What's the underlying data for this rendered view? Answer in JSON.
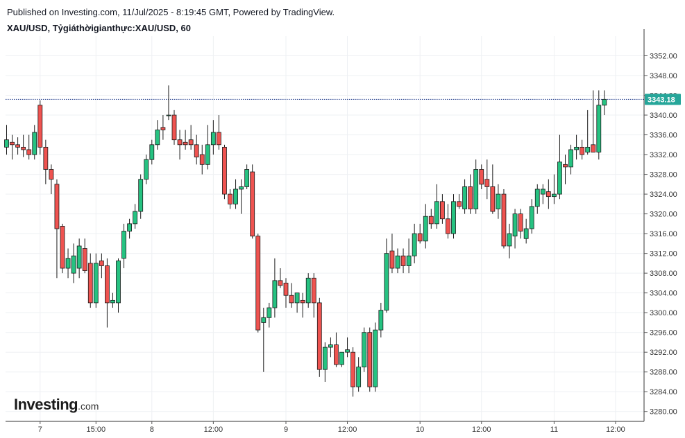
{
  "header": {
    "published": "Published on Investing.com, 11/Jul/2025 - 8:19:45 GMT, Powered by TradingView.",
    "symbol": "XAU/USD, Tỷgiáthờigianthực:XAU/USD, 60"
  },
  "logo": {
    "brand": "Investing",
    "domain": ".com"
  },
  "colors": {
    "up": "#26c281",
    "down": "#ef5350",
    "price_line": "#1e3a8a",
    "price_label": "#26a69a",
    "grid": "#eef0f3",
    "axis_text": "#333333"
  },
  "chart_data": {
    "type": "candlestick",
    "ylim": [
      3278,
      3356
    ],
    "y_ticks": [
      "3280.00",
      "3284.00",
      "3288.00",
      "3292.00",
      "3296.00",
      "3300.00",
      "3304.00",
      "3308.00",
      "3312.00",
      "3316.00",
      "3320.00",
      "3324.00",
      "3328.00",
      "3332.00",
      "3336.00",
      "3340.00",
      "3344.00",
      "3348.00",
      "3352.00"
    ],
    "x_ticks": [
      {
        "label": "7",
        "index": 6
      },
      {
        "label": "15:00",
        "index": 16
      },
      {
        "label": "8",
        "index": 26
      },
      {
        "label": "12:00",
        "index": 37
      },
      {
        "label": "9",
        "index": 50
      },
      {
        "label": "12:00",
        "index": 61
      },
      {
        "label": "10",
        "index": 74
      },
      {
        "label": "12:00",
        "index": 85
      },
      {
        "label": "11",
        "index": 98
      },
      {
        "label": "12:00",
        "index": 109
      }
    ],
    "last_price": 3343.18,
    "last_price_label": "3343.18",
    "candles": [
      {
        "o": 3333.5,
        "h": 3338.0,
        "l": 3332.0,
        "c": 3335.0
      },
      {
        "o": 3334.5,
        "h": 3336.0,
        "l": 3331.0,
        "c": 3334.0
      },
      {
        "o": 3334.0,
        "h": 3335.5,
        "l": 3332.0,
        "c": 3333.5
      },
      {
        "o": 3333.5,
        "h": 3336.0,
        "l": 3331.5,
        "c": 3333.0
      },
      {
        "o": 3333.0,
        "h": 3336.0,
        "l": 3331.0,
        "c": 3332.0
      },
      {
        "o": 3332.0,
        "h": 3338.0,
        "l": 3331.0,
        "c": 3336.5
      },
      {
        "o": 3342.0,
        "h": 3343.0,
        "l": 3332.0,
        "c": 3333.5
      },
      {
        "o": 3333.5,
        "h": 3335.0,
        "l": 3326.0,
        "c": 3329.0
      },
      {
        "o": 3329.0,
        "h": 3330.0,
        "l": 3324.0,
        "c": 3327.0
      },
      {
        "o": 3326.0,
        "h": 3327.0,
        "l": 3307.0,
        "c": 3317.0
      },
      {
        "o": 3317.5,
        "h": 3318.0,
        "l": 3308.0,
        "c": 3309.0
      },
      {
        "o": 3309.0,
        "h": 3313.0,
        "l": 3307.0,
        "c": 3311.0
      },
      {
        "o": 3308.0,
        "h": 3314.0,
        "l": 3306.0,
        "c": 3311.5
      },
      {
        "o": 3309.0,
        "h": 3315.0,
        "l": 3307.0,
        "c": 3313.5
      },
      {
        "o": 3313.0,
        "h": 3315.0,
        "l": 3308.0,
        "c": 3308.5
      },
      {
        "o": 3310.0,
        "h": 3312.0,
        "l": 3301.0,
        "c": 3302.0
      },
      {
        "o": 3302.0,
        "h": 3312.0,
        "l": 3301.0,
        "c": 3310.0
      },
      {
        "o": 3310.5,
        "h": 3312.0,
        "l": 3307.0,
        "c": 3309.5
      },
      {
        "o": 3309.5,
        "h": 3311.0,
        "l": 3297.0,
        "c": 3302.0
      },
      {
        "o": 3302.0,
        "h": 3304.0,
        "l": 3301.0,
        "c": 3302.5
      },
      {
        "o": 3302.0,
        "h": 3311.0,
        "l": 3300.0,
        "c": 3310.5
      },
      {
        "o": 3311.0,
        "h": 3318.0,
        "l": 3309.0,
        "c": 3316.5
      },
      {
        "o": 3316.5,
        "h": 3319.0,
        "l": 3315.0,
        "c": 3318.0
      },
      {
        "o": 3318.0,
        "h": 3322.0,
        "l": 3317.0,
        "c": 3320.5
      },
      {
        "o": 3320.5,
        "h": 3328.0,
        "l": 3319.0,
        "c": 3327.0
      },
      {
        "o": 3327.0,
        "h": 3332.0,
        "l": 3326.0,
        "c": 3331.0
      },
      {
        "o": 3331.0,
        "h": 3335.0,
        "l": 3330.0,
        "c": 3334.0
      },
      {
        "o": 3334.0,
        "h": 3339.0,
        "l": 3333.0,
        "c": 3337.0
      },
      {
        "o": 3337.5,
        "h": 3340.0,
        "l": 3335.0,
        "c": 3337.0
      },
      {
        "o": 3340.0,
        "h": 3346.0,
        "l": 3339.0,
        "c": 3340.0
      },
      {
        "o": 3340.0,
        "h": 3341.0,
        "l": 3334.0,
        "c": 3335.0
      },
      {
        "o": 3335.0,
        "h": 3337.0,
        "l": 3331.0,
        "c": 3334.0
      },
      {
        "o": 3334.5,
        "h": 3337.0,
        "l": 3333.0,
        "c": 3334.0
      },
      {
        "o": 3335.0,
        "h": 3338.0,
        "l": 3333.0,
        "c": 3334.0
      },
      {
        "o": 3334.0,
        "h": 3336.0,
        "l": 3330.0,
        "c": 3331.5
      },
      {
        "o": 3332.0,
        "h": 3334.0,
        "l": 3328.0,
        "c": 3330.0
      },
      {
        "o": 3330.0,
        "h": 3338.0,
        "l": 3329.0,
        "c": 3334.0
      },
      {
        "o": 3334.0,
        "h": 3339.0,
        "l": 3332.0,
        "c": 3336.5
      },
      {
        "o": 3336.5,
        "h": 3340.0,
        "l": 3333.0,
        "c": 3334.0
      },
      {
        "o": 3333.5,
        "h": 3334.0,
        "l": 3323.0,
        "c": 3324.0
      },
      {
        "o": 3324.0,
        "h": 3325.0,
        "l": 3321.0,
        "c": 3322.0
      },
      {
        "o": 3322.0,
        "h": 3327.0,
        "l": 3321.0,
        "c": 3325.0
      },
      {
        "o": 3325.0,
        "h": 3327.0,
        "l": 3320.0,
        "c": 3325.5
      },
      {
        "o": 3325.5,
        "h": 3330.0,
        "l": 3325.0,
        "c": 3329.0
      },
      {
        "o": 3328.5,
        "h": 3330.0,
        "l": 3315.0,
        "c": 3315.5
      },
      {
        "o": 3315.5,
        "h": 3316.0,
        "l": 3296.0,
        "c": 3296.5
      },
      {
        "o": 3298.0,
        "h": 3301.0,
        "l": 3288.0,
        "c": 3299.0
      },
      {
        "o": 3299.0,
        "h": 3302.0,
        "l": 3297.0,
        "c": 3301.0
      },
      {
        "o": 3301.0,
        "h": 3311.0,
        "l": 3299.0,
        "c": 3306.5
      },
      {
        "o": 3306.5,
        "h": 3309.0,
        "l": 3305.0,
        "c": 3305.5
      },
      {
        "o": 3306.0,
        "h": 3307.0,
        "l": 3301.0,
        "c": 3303.5
      },
      {
        "o": 3303.5,
        "h": 3306.0,
        "l": 3301.0,
        "c": 3302.0
      },
      {
        "o": 3302.0,
        "h": 3304.0,
        "l": 3300.0,
        "c": 3304.0
      },
      {
        "o": 3302.5,
        "h": 3304.0,
        "l": 3299.0,
        "c": 3302.0
      },
      {
        "o": 3302.0,
        "h": 3308.0,
        "l": 3301.0,
        "c": 3307.0
      },
      {
        "o": 3307.0,
        "h": 3308.0,
        "l": 3299.0,
        "c": 3302.0
      },
      {
        "o": 3302.0,
        "h": 3303.0,
        "l": 3287.0,
        "c": 3288.5
      },
      {
        "o": 3288.5,
        "h": 3294.0,
        "l": 3286.0,
        "c": 3293.0
      },
      {
        "o": 3293.0,
        "h": 3295.0,
        "l": 3291.0,
        "c": 3293.5
      },
      {
        "o": 3293.5,
        "h": 3296.0,
        "l": 3289.0,
        "c": 3289.5
      },
      {
        "o": 3289.5,
        "h": 3292.0,
        "l": 3289.0,
        "c": 3292.0
      },
      {
        "o": 3292.0,
        "h": 3295.0,
        "l": 3291.0,
        "c": 3292.5
      },
      {
        "o": 3292.0,
        "h": 3293.0,
        "l": 3283.0,
        "c": 3285.0
      },
      {
        "o": 3285.0,
        "h": 3291.0,
        "l": 3284.0,
        "c": 3289.0
      },
      {
        "o": 3289.0,
        "h": 3297.0,
        "l": 3288.0,
        "c": 3296.0
      },
      {
        "o": 3296.0,
        "h": 3297.0,
        "l": 3284.0,
        "c": 3285.0
      },
      {
        "o": 3285.0,
        "h": 3298.0,
        "l": 3284.0,
        "c": 3296.5
      },
      {
        "o": 3296.5,
        "h": 3302.0,
        "l": 3295.0,
        "c": 3300.5
      },
      {
        "o": 3300.5,
        "h": 3315.0,
        "l": 3300.0,
        "c": 3312.0
      },
      {
        "o": 3312.5,
        "h": 3316.0,
        "l": 3308.0,
        "c": 3309.0
      },
      {
        "o": 3309.0,
        "h": 3313.0,
        "l": 3308.0,
        "c": 3311.5
      },
      {
        "o": 3311.5,
        "h": 3313.0,
        "l": 3308.0,
        "c": 3309.5
      },
      {
        "o": 3309.5,
        "h": 3315.0,
        "l": 3308.0,
        "c": 3311.5
      },
      {
        "o": 3311.5,
        "h": 3318.0,
        "l": 3310.0,
        "c": 3316.0
      },
      {
        "o": 3316.0,
        "h": 3318.0,
        "l": 3314.0,
        "c": 3314.5
      },
      {
        "o": 3314.5,
        "h": 3322.0,
        "l": 3313.0,
        "c": 3319.5
      },
      {
        "o": 3319.5,
        "h": 3321.0,
        "l": 3317.0,
        "c": 3318.0
      },
      {
        "o": 3318.0,
        "h": 3326.0,
        "l": 3317.0,
        "c": 3322.5
      },
      {
        "o": 3322.5,
        "h": 3324.0,
        "l": 3318.0,
        "c": 3319.0
      },
      {
        "o": 3319.0,
        "h": 3322.0,
        "l": 3315.0,
        "c": 3316.0
      },
      {
        "o": 3316.0,
        "h": 3324.0,
        "l": 3315.0,
        "c": 3322.5
      },
      {
        "o": 3322.5,
        "h": 3324.0,
        "l": 3321.0,
        "c": 3321.5
      },
      {
        "o": 3321.0,
        "h": 3327.0,
        "l": 3320.0,
        "c": 3325.5
      },
      {
        "o": 3325.5,
        "h": 3328.0,
        "l": 3320.0,
        "c": 3321.0
      },
      {
        "o": 3321.0,
        "h": 3331.0,
        "l": 3320.0,
        "c": 3329.0
      },
      {
        "o": 3329.0,
        "h": 3330.0,
        "l": 3325.0,
        "c": 3326.0
      },
      {
        "o": 3327.0,
        "h": 3331.0,
        "l": 3323.0,
        "c": 3325.5
      },
      {
        "o": 3325.5,
        "h": 3330.0,
        "l": 3320.0,
        "c": 3320.5
      },
      {
        "o": 3321.0,
        "h": 3326.0,
        "l": 3319.0,
        "c": 3324.0
      },
      {
        "o": 3324.0,
        "h": 3325.0,
        "l": 3313.0,
        "c": 3313.5
      },
      {
        "o": 3313.5,
        "h": 3318.0,
        "l": 3311.0,
        "c": 3316.0
      },
      {
        "o": 3315.5,
        "h": 3321.0,
        "l": 3313.0,
        "c": 3320.0
      },
      {
        "o": 3320.0,
        "h": 3321.0,
        "l": 3315.0,
        "c": 3316.5
      },
      {
        "o": 3315.0,
        "h": 3319.0,
        "l": 3314.0,
        "c": 3317.0
      },
      {
        "o": 3317.0,
        "h": 3323.0,
        "l": 3316.0,
        "c": 3321.5
      },
      {
        "o": 3321.5,
        "h": 3326.0,
        "l": 3320.0,
        "c": 3325.0
      },
      {
        "o": 3324.0,
        "h": 3326.0,
        "l": 3322.0,
        "c": 3325.0
      },
      {
        "o": 3324.5,
        "h": 3327.0,
        "l": 3321.0,
        "c": 3323.5
      },
      {
        "o": 3323.5,
        "h": 3328.0,
        "l": 3322.0,
        "c": 3324.0
      },
      {
        "o": 3324.0,
        "h": 3336.0,
        "l": 3323.0,
        "c": 3330.5
      },
      {
        "o": 3330.0,
        "h": 3332.0,
        "l": 3326.0,
        "c": 3329.5
      },
      {
        "o": 3329.5,
        "h": 3334.0,
        "l": 3328.0,
        "c": 3333.0
      },
      {
        "o": 3333.0,
        "h": 3336.0,
        "l": 3331.0,
        "c": 3333.5
      },
      {
        "o": 3333.5,
        "h": 3335.0,
        "l": 3331.0,
        "c": 3332.0
      },
      {
        "o": 3332.5,
        "h": 3341.0,
        "l": 3332.0,
        "c": 3333.5
      },
      {
        "o": 3334.0,
        "h": 3345.0,
        "l": 3333.0,
        "c": 3332.5
      },
      {
        "o": 3332.5,
        "h": 3345.0,
        "l": 3331.0,
        "c": 3342.0
      },
      {
        "o": 3342.0,
        "h": 3345.0,
        "l": 3340.0,
        "c": 3343.18
      }
    ]
  }
}
